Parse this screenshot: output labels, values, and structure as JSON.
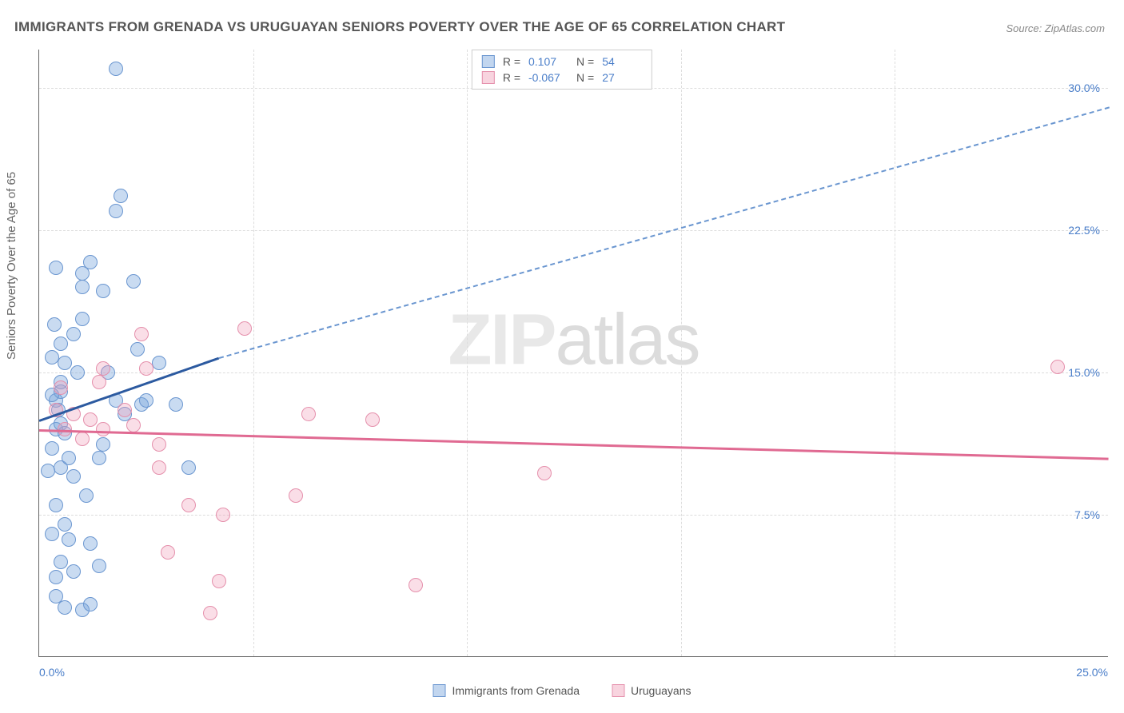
{
  "title": "IMMIGRANTS FROM GRENADA VS URUGUAYAN SENIORS POVERTY OVER THE AGE OF 65 CORRELATION CHART",
  "source_prefix": "Source: ",
  "source_name": "ZipAtlas.com",
  "ylabel": "Seniors Poverty Over the Age of 65",
  "watermark_bold": "ZIP",
  "watermark_light": "atlas",
  "chart": {
    "type": "scatter",
    "background_color": "#ffffff",
    "grid_color": "#dddddd",
    "axis_color": "#666666",
    "ytick_label_color": "#4a7ec9",
    "xlim": [
      0,
      25
    ],
    "ylim": [
      0,
      32
    ],
    "yticks": [
      7.5,
      15.0,
      22.5,
      30.0
    ],
    "ytick_labels": [
      "7.5%",
      "15.0%",
      "22.5%",
      "30.0%"
    ],
    "xticks": [
      0,
      25
    ],
    "xtick_labels": [
      "0.0%",
      "25.0%"
    ],
    "xtick_minor": [
      5,
      10,
      15,
      20
    ],
    "marker_size": 18,
    "series": [
      {
        "name": "Immigrants from Grenada",
        "color_fill": "rgba(120,165,220,0.4)",
        "color_stroke": "#6a96d0",
        "trend_color_solid": "#2c5aa0",
        "trend_color_dash": "#6a96d0",
        "R": "0.107",
        "N": "54",
        "trend": {
          "x1": 0,
          "y1": 12.5,
          "x2_solid": 4.2,
          "y2_solid": 15.8,
          "x2_dash": 25,
          "y2_dash": 29.0
        },
        "points": [
          [
            0.4,
            13.5
          ],
          [
            0.45,
            13.0
          ],
          [
            0.5,
            14.0
          ],
          [
            0.5,
            14.5
          ],
          [
            0.6,
            15.5
          ],
          [
            0.4,
            20.5
          ],
          [
            1.0,
            19.5
          ],
          [
            1.0,
            20.2
          ],
          [
            1.5,
            19.3
          ],
          [
            1.8,
            31.0
          ],
          [
            1.8,
            23.5
          ],
          [
            1.9,
            24.3
          ],
          [
            2.2,
            19.8
          ],
          [
            0.4,
            12.0
          ],
          [
            0.5,
            12.3
          ],
          [
            0.6,
            11.8
          ],
          [
            0.3,
            13.8
          ],
          [
            0.5,
            10.0
          ],
          [
            0.7,
            10.5
          ],
          [
            0.8,
            9.5
          ],
          [
            1.4,
            10.5
          ],
          [
            1.5,
            11.2
          ],
          [
            2.3,
            16.2
          ],
          [
            2.4,
            13.3
          ],
          [
            2.5,
            13.5
          ],
          [
            3.2,
            13.3
          ],
          [
            0.4,
            8.0
          ],
          [
            0.6,
            7.0
          ],
          [
            0.7,
            6.2
          ],
          [
            1.2,
            6.0
          ],
          [
            1.4,
            4.8
          ],
          [
            0.4,
            3.2
          ],
          [
            0.6,
            2.6
          ],
          [
            1.0,
            2.5
          ],
          [
            1.2,
            2.8
          ],
          [
            2.8,
            15.5
          ],
          [
            3.5,
            10.0
          ],
          [
            0.8,
            17.0
          ],
          [
            1.0,
            17.8
          ],
          [
            0.9,
            15.0
          ],
          [
            1.6,
            15.0
          ],
          [
            0.3,
            15.8
          ],
          [
            0.5,
            5.0
          ],
          [
            2.0,
            12.8
          ],
          [
            0.3,
            11.0
          ],
          [
            1.1,
            8.5
          ],
          [
            0.2,
            9.8
          ],
          [
            0.5,
            16.5
          ],
          [
            1.2,
            20.8
          ],
          [
            0.3,
            6.5
          ],
          [
            0.8,
            4.5
          ],
          [
            0.4,
            4.2
          ],
          [
            1.8,
            13.5
          ],
          [
            0.35,
            17.5
          ]
        ]
      },
      {
        "name": "Uruguayans",
        "color_fill": "rgba(240,160,185,0.35)",
        "color_stroke": "#e590ac",
        "trend_color_solid": "#e06a92",
        "R": "-0.067",
        "N": "27",
        "trend": {
          "x1": 0,
          "y1": 12.0,
          "x2_solid": 25,
          "y2_solid": 10.5
        },
        "points": [
          [
            0.4,
            13.0
          ],
          [
            0.6,
            12.0
          ],
          [
            0.8,
            12.8
          ],
          [
            1.4,
            14.5
          ],
          [
            1.5,
            12.0
          ],
          [
            2.2,
            12.2
          ],
          [
            2.4,
            17.0
          ],
          [
            4.8,
            17.3
          ],
          [
            2.5,
            15.2
          ],
          [
            1.5,
            15.2
          ],
          [
            2.8,
            11.2
          ],
          [
            2.0,
            13.0
          ],
          [
            2.8,
            10.0
          ],
          [
            3.5,
            8.0
          ],
          [
            6.0,
            8.5
          ],
          [
            6.3,
            12.8
          ],
          [
            4.0,
            2.3
          ],
          [
            4.2,
            4.0
          ],
          [
            4.3,
            7.5
          ],
          [
            3.0,
            5.5
          ],
          [
            7.8,
            12.5
          ],
          [
            8.8,
            3.8
          ],
          [
            11.8,
            9.7
          ],
          [
            23.8,
            15.3
          ],
          [
            1.0,
            11.5
          ],
          [
            1.2,
            12.5
          ],
          [
            0.5,
            14.2
          ]
        ]
      }
    ],
    "legend_top_labels": {
      "R": "R =",
      "N": "N ="
    },
    "legend_bottom": [
      {
        "swatch": "blue",
        "label": "Immigrants from Grenada"
      },
      {
        "swatch": "pink",
        "label": "Uruguayans"
      }
    ]
  }
}
